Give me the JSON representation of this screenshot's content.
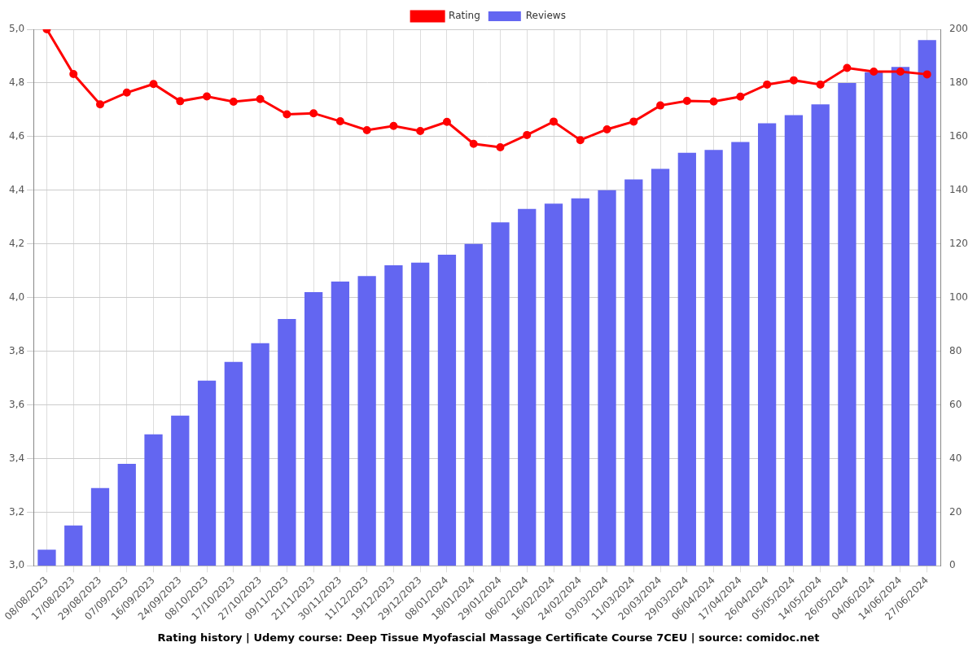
{
  "chart_data": {
    "type": "bar",
    "title": "Rating history | Udemy course: Deep Tissue Myofascial Massage Certificate Course 7CEU | source: comidoc.net",
    "categories": [
      "08/08/2023",
      "17/08/2023",
      "29/08/2023",
      "07/09/2023",
      "16/09/2023",
      "24/09/2023",
      "08/10/2023",
      "17/10/2023",
      "27/10/2023",
      "09/11/2023",
      "21/11/2023",
      "30/11/2023",
      "11/12/2023",
      "19/12/2023",
      "29/12/2023",
      "08/01/2024",
      "18/01/2024",
      "29/01/2024",
      "06/02/2024",
      "16/02/2024",
      "24/02/2024",
      "03/03/2024",
      "11/03/2024",
      "20/03/2024",
      "29/03/2024",
      "06/04/2024",
      "17/04/2024",
      "26/04/2024",
      "05/05/2024",
      "14/05/2024",
      "26/05/2024",
      "04/06/2024",
      "14/06/2024",
      "27/06/2024"
    ],
    "series": [
      {
        "name": "Rating",
        "type": "line",
        "color": "#ff0000",
        "marker": "circle",
        "line_style": "solid",
        "values": [
          5.0,
          4.833,
          4.72,
          4.764,
          4.796,
          4.732,
          4.75,
          4.73,
          4.74,
          4.683,
          4.687,
          4.657,
          4.624,
          4.64,
          4.621,
          4.655,
          4.573,
          4.56,
          4.606,
          4.656,
          4.587,
          4.627,
          4.656,
          4.716,
          4.733,
          4.731,
          4.749,
          4.794,
          4.81,
          4.794,
          4.856,
          4.842,
          4.842,
          4.832
        ]
      },
      {
        "name": "Reviews",
        "type": "bar",
        "color": "#6366f1",
        "axis": "y2",
        "values": [
          6,
          15,
          29,
          38,
          49,
          56,
          69,
          76,
          83,
          92,
          102,
          106,
          108,
          112,
          113,
          116,
          120,
          128,
          133,
          135,
          137,
          140,
          144,
          148,
          154,
          155,
          158,
          165,
          168,
          172,
          180,
          184,
          186,
          196
        ]
      }
    ],
    "ylim": [
      3.0,
      5.0
    ],
    "yticks": [
      {
        "value": 3.0,
        "label": "3,0"
      },
      {
        "value": 3.2,
        "label": "3,2"
      },
      {
        "value": 3.4,
        "label": "3,4"
      },
      {
        "value": 3.6,
        "label": "3,6"
      },
      {
        "value": 3.8,
        "label": "3,8"
      },
      {
        "value": 4.0,
        "label": "4,0"
      },
      {
        "value": 4.2,
        "label": "4,2"
      },
      {
        "value": 4.4,
        "label": "4,4"
      },
      {
        "value": 4.6,
        "label": "4,6"
      },
      {
        "value": 4.8,
        "label": "4,8"
      },
      {
        "value": 5.0,
        "label": "5,0"
      }
    ],
    "y2lim": [
      0,
      200
    ],
    "y2ticks": [
      0,
      20,
      40,
      60,
      80,
      100,
      120,
      140,
      160,
      180,
      200
    ],
    "grid": true,
    "legend": "top"
  }
}
